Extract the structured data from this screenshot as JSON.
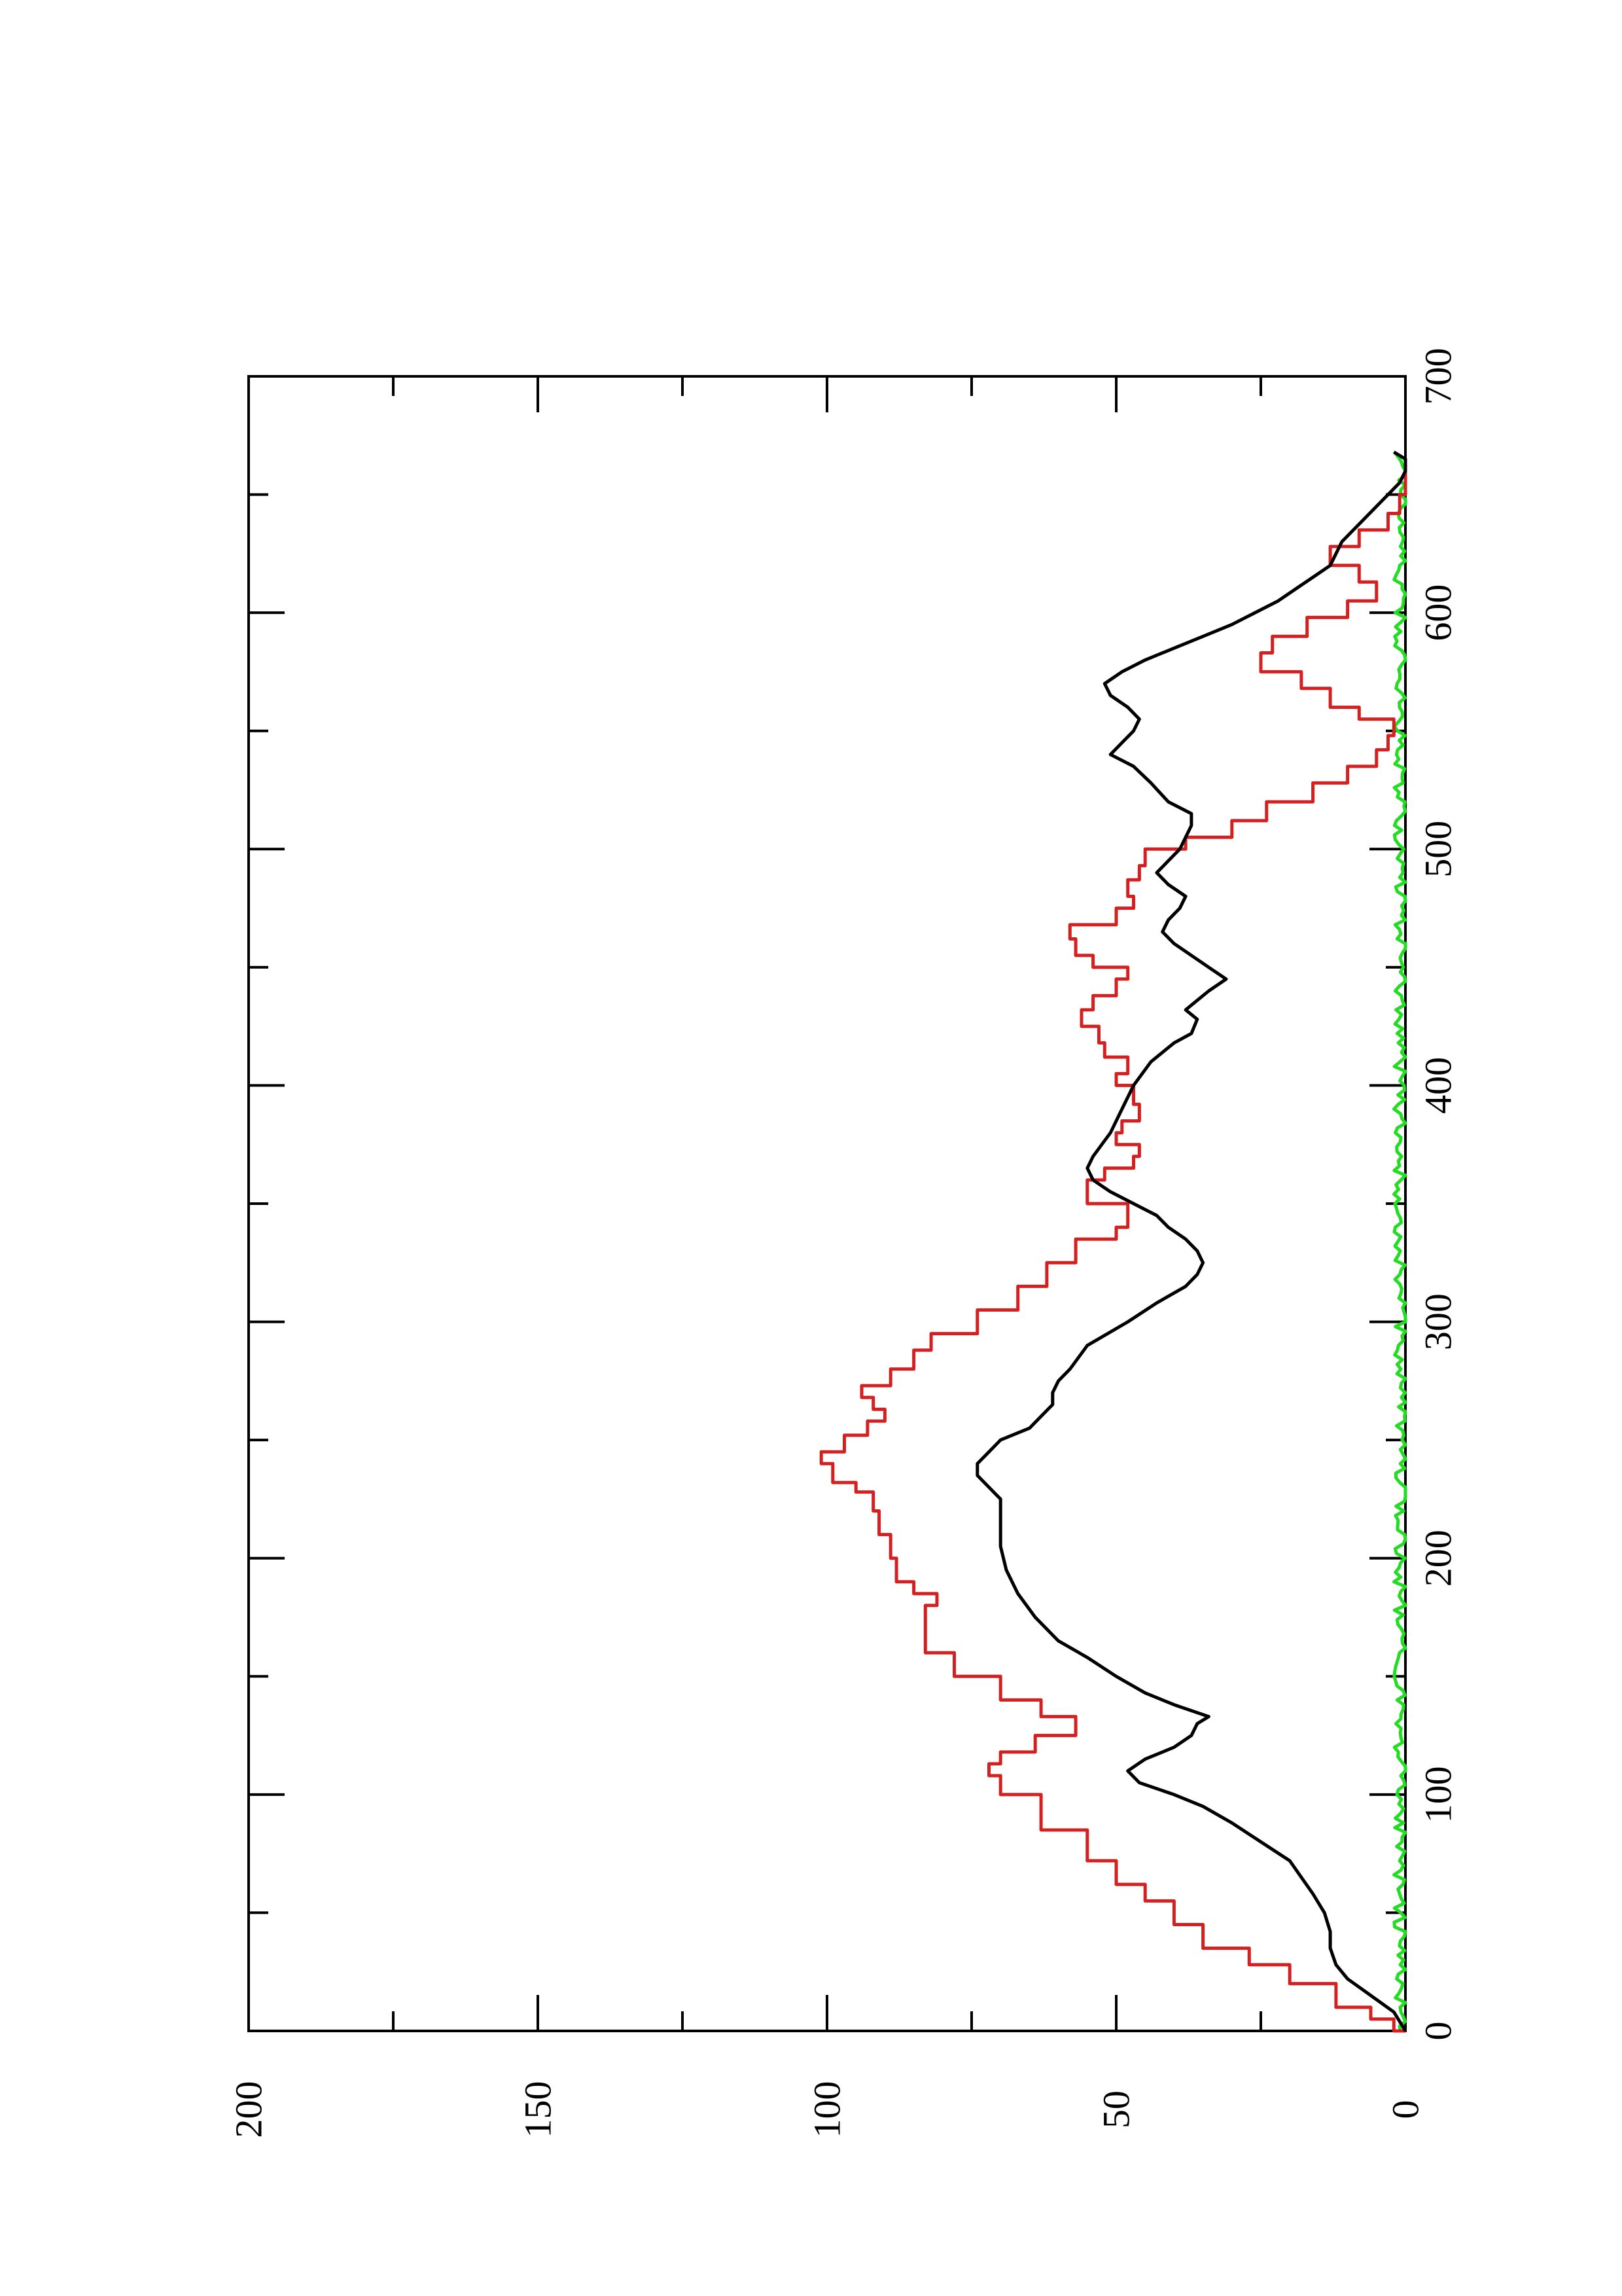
{
  "chart_data": {
    "type": "line",
    "orientation": "rotated-90-ccw",
    "title": "",
    "xlabel": "",
    "ylabel": "",
    "xlim": [
      0,
      700
    ],
    "ylim": [
      0,
      200
    ],
    "x_ticks": [
      0,
      100,
      200,
      300,
      400,
      500,
      600,
      700
    ],
    "y_ticks": [
      0,
      50,
      100,
      150,
      200
    ],
    "x_minor_ticks": [
      50,
      150,
      250,
      350,
      450,
      550,
      650
    ],
    "y_minor_ticks": [
      25,
      75,
      125,
      175
    ],
    "grid": false,
    "legend": "none",
    "series": [
      {
        "color": "#d42020",
        "style": "step",
        "points": [
          [
            0,
            0
          ],
          [
            5,
            2
          ],
          [
            10,
            6
          ],
          [
            20,
            12
          ],
          [
            28,
            20
          ],
          [
            35,
            27
          ],
          [
            45,
            35
          ],
          [
            55,
            40
          ],
          [
            62,
            45
          ],
          [
            72,
            50
          ],
          [
            85,
            55
          ],
          [
            100,
            63
          ],
          [
            108,
            70
          ],
          [
            113,
            72
          ],
          [
            118,
            70
          ],
          [
            125,
            64
          ],
          [
            133,
            57
          ],
          [
            140,
            63
          ],
          [
            150,
            70
          ],
          [
            160,
            78
          ],
          [
            170,
            83
          ],
          [
            180,
            83
          ],
          [
            185,
            81
          ],
          [
            190,
            85
          ],
          [
            200,
            88
          ],
          [
            210,
            89
          ],
          [
            220,
            91
          ],
          [
            228,
            92
          ],
          [
            232,
            95
          ],
          [
            240,
            99
          ],
          [
            245,
            101
          ],
          [
            252,
            97
          ],
          [
            258,
            93
          ],
          [
            263,
            90
          ],
          [
            268,
            92
          ],
          [
            273,
            94
          ],
          [
            280,
            89
          ],
          [
            288,
            85
          ],
          [
            295,
            82
          ],
          [
            305,
            74
          ],
          [
            315,
            67
          ],
          [
            325,
            62
          ],
          [
            335,
            57
          ],
          [
            340,
            50
          ],
          [
            350,
            48
          ],
          [
            360,
            55
          ],
          [
            365,
            52
          ],
          [
            370,
            47
          ],
          [
            375,
            46
          ],
          [
            380,
            50
          ],
          [
            385,
            49
          ],
          [
            392,
            46
          ],
          [
            400,
            47
          ],
          [
            405,
            50
          ],
          [
            412,
            48
          ],
          [
            418,
            52
          ],
          [
            425,
            53
          ],
          [
            432,
            56
          ],
          [
            438,
            54
          ],
          [
            445,
            50
          ],
          [
            450,
            48
          ],
          [
            455,
            54
          ],
          [
            462,
            57
          ],
          [
            468,
            58
          ],
          [
            475,
            50
          ],
          [
            480,
            47
          ],
          [
            487,
            48
          ],
          [
            493,
            46
          ],
          [
            500,
            45
          ],
          [
            505,
            38
          ],
          [
            512,
            30
          ],
          [
            520,
            24
          ],
          [
            528,
            16
          ],
          [
            535,
            10
          ],
          [
            542,
            5
          ],
          [
            548,
            3
          ],
          [
            555,
            2
          ],
          [
            560,
            8
          ],
          [
            568,
            13
          ],
          [
            575,
            18
          ],
          [
            583,
            25
          ],
          [
            590,
            23
          ],
          [
            598,
            17
          ],
          [
            605,
            10
          ],
          [
            613,
            5
          ],
          [
            620,
            8
          ],
          [
            628,
            13
          ],
          [
            635,
            8
          ],
          [
            642,
            3
          ],
          [
            650,
            1
          ],
          [
            655,
            0
          ],
          [
            665,
            0
          ]
        ]
      },
      {
        "color": "#000000",
        "style": "line",
        "points": [
          [
            0,
            0
          ],
          [
            8,
            2
          ],
          [
            15,
            6
          ],
          [
            22,
            10
          ],
          [
            28,
            12
          ],
          [
            35,
            13
          ],
          [
            42,
            13
          ],
          [
            50,
            14
          ],
          [
            58,
            16
          ],
          [
            65,
            18
          ],
          [
            72,
            20
          ],
          [
            80,
            25
          ],
          [
            88,
            30
          ],
          [
            95,
            35
          ],
          [
            100,
            40
          ],
          [
            105,
            46
          ],
          [
            110,
            48
          ],
          [
            115,
            45
          ],
          [
            120,
            40
          ],
          [
            125,
            37
          ],
          [
            130,
            36
          ],
          [
            133,
            34
          ],
          [
            138,
            40
          ],
          [
            143,
            45
          ],
          [
            150,
            50
          ],
          [
            158,
            55
          ],
          [
            165,
            60
          ],
          [
            175,
            64
          ],
          [
            185,
            67
          ],
          [
            195,
            69
          ],
          [
            205,
            70
          ],
          [
            215,
            70
          ],
          [
            225,
            70
          ],
          [
            230,
            72
          ],
          [
            235,
            74
          ],
          [
            240,
            74
          ],
          [
            245,
            72
          ],
          [
            250,
            70
          ],
          [
            255,
            65
          ],
          [
            260,
            63
          ],
          [
            265,
            61
          ],
          [
            270,
            61
          ],
          [
            275,
            60
          ],
          [
            280,
            58
          ],
          [
            290,
            55
          ],
          [
            300,
            48
          ],
          [
            308,
            43
          ],
          [
            315,
            38
          ],
          [
            320,
            36
          ],
          [
            325,
            35
          ],
          [
            330,
            36
          ],
          [
            335,
            38
          ],
          [
            340,
            41
          ],
          [
            345,
            43
          ],
          [
            350,
            47
          ],
          [
            355,
            51
          ],
          [
            360,
            54
          ],
          [
            365,
            55
          ],
          [
            370,
            54
          ],
          [
            380,
            51
          ],
          [
            390,
            49
          ],
          [
            400,
            47
          ],
          [
            410,
            44
          ],
          [
            418,
            40
          ],
          [
            422,
            37
          ],
          [
            428,
            36
          ],
          [
            432,
            38
          ],
          [
            436,
            36
          ],
          [
            440,
            34
          ],
          [
            445,
            31
          ],
          [
            450,
            34
          ],
          [
            455,
            37
          ],
          [
            460,
            40
          ],
          [
            465,
            42
          ],
          [
            470,
            41
          ],
          [
            475,
            39
          ],
          [
            480,
            38
          ],
          [
            485,
            41
          ],
          [
            490,
            43
          ],
          [
            495,
            41
          ],
          [
            500,
            39
          ],
          [
            505,
            38
          ],
          [
            510,
            37
          ],
          [
            515,
            37
          ],
          [
            520,
            41
          ],
          [
            528,
            44
          ],
          [
            535,
            47
          ],
          [
            540,
            51
          ],
          [
            545,
            49
          ],
          [
            550,
            47
          ],
          [
            555,
            46
          ],
          [
            560,
            48
          ],
          [
            565,
            51
          ],
          [
            570,
            52
          ],
          [
            575,
            49
          ],
          [
            580,
            45
          ],
          [
            585,
            40
          ],
          [
            590,
            35
          ],
          [
            595,
            30
          ],
          [
            600,
            26
          ],
          [
            605,
            22
          ],
          [
            610,
            19
          ],
          [
            615,
            16
          ],
          [
            620,
            13
          ],
          [
            625,
            12
          ],
          [
            630,
            11
          ],
          [
            635,
            9
          ],
          [
            640,
            7
          ],
          [
            645,
            5
          ],
          [
            650,
            3
          ],
          [
            655,
            1
          ],
          [
            660,
            0
          ],
          [
            665,
            0
          ],
          [
            668,
            2
          ]
        ]
      },
      {
        "color": "#22dd22",
        "style": "line",
        "noise": true,
        "points": [
          [
            0,
            0.5
          ],
          [
            700,
            0.5
          ]
        ]
      }
    ]
  }
}
